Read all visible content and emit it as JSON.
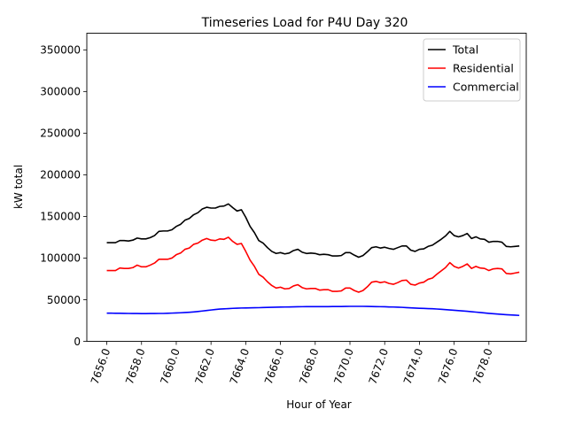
{
  "chart_data": {
    "type": "line",
    "title": "Timeseries Load for P4U   Day 320",
    "xlabel": "Hour of Year",
    "ylabel": "kW total",
    "xlim": [
      7654.85,
      7680.15
    ],
    "ylim": [
      0,
      370000
    ],
    "xticks": [
      7656,
      7658,
      7660,
      7662,
      7664,
      7666,
      7668,
      7670,
      7672,
      7674,
      7676,
      7678
    ],
    "xtick_labels": [
      "7656.0",
      "7658.0",
      "7660.0",
      "7662.0",
      "7664.0",
      "7666.0",
      "7668.0",
      "7670.0",
      "7672.0",
      "7674.0",
      "7676.0",
      "7678.0"
    ],
    "yticks": [
      0,
      50000,
      100000,
      150000,
      200000,
      250000,
      300000,
      350000
    ],
    "ytick_labels": [
      "0",
      "50000",
      "100000",
      "150000",
      "200000",
      "250000",
      "300000",
      "350000"
    ],
    "legend_position": "top-right",
    "x_start": 7656,
    "x_step": 0.25,
    "series": [
      {
        "name": "Total",
        "color": "#000000",
        "values": [
          118500,
          118500,
          118500,
          121000,
          121000,
          120500,
          121500,
          124000,
          123000,
          123000,
          124500,
          127000,
          132000,
          132500,
          132500,
          134000,
          138000,
          140500,
          145500,
          147500,
          152000,
          154500,
          159000,
          161000,
          160000,
          160000,
          162000,
          162500,
          165000,
          160500,
          156500,
          158000,
          149000,
          138000,
          130500,
          121000,
          118000,
          112500,
          108000,
          105500,
          106500,
          105000,
          106000,
          109000,
          110500,
          107000,
          105500,
          106000,
          105500,
          104000,
          104500,
          104000,
          102500,
          102500,
          103000,
          106500,
          106500,
          103500,
          101000,
          103000,
          107500,
          112500,
          113500,
          112000,
          113000,
          111500,
          110500,
          112500,
          114500,
          114500,
          109500,
          108000,
          110500,
          111000,
          114000,
          115500,
          119000,
          122500,
          126500,
          132000,
          127000,
          125500,
          127000,
          129500,
          123500,
          125500,
          123000,
          122500,
          119000,
          120000,
          120000,
          119000,
          114000,
          113500,
          114000,
          114500
        ]
      },
      {
        "name": "Residential",
        "color": "#ff0000",
        "values": [
          85000,
          85000,
          85000,
          88000,
          87500,
          87500,
          88500,
          91500,
          89500,
          89500,
          91500,
          94000,
          98500,
          98500,
          98500,
          100000,
          104000,
          106000,
          110500,
          112000,
          116500,
          118000,
          121500,
          123500,
          121500,
          121000,
          123000,
          122500,
          125000,
          120000,
          116500,
          117500,
          108000,
          97500,
          90000,
          80500,
          77000,
          71500,
          67000,
          64000,
          65000,
          63000,
          63500,
          66500,
          68000,
          64500,
          63000,
          63500,
          63500,
          61500,
          62000,
          62000,
          60000,
          60000,
          60500,
          64000,
          64000,
          61000,
          59000,
          61000,
          65500,
          71000,
          72000,
          70500,
          71500,
          69500,
          68500,
          70500,
          73000,
          73500,
          68500,
          67500,
          70000,
          71000,
          74500,
          76000,
          80500,
          84500,
          88500,
          94500,
          90000,
          88000,
          90000,
          93000,
          87500,
          90000,
          88000,
          87500,
          85000,
          87000,
          87500,
          87000,
          81500,
          81000,
          82000,
          83000
        ]
      },
      {
        "name": "Commercial",
        "color": "#0000ff",
        "values": [
          33800,
          33800,
          33700,
          33700,
          33600,
          33500,
          33400,
          33400,
          33300,
          33300,
          33400,
          33400,
          33500,
          33500,
          33700,
          33900,
          34100,
          34300,
          34600,
          34900,
          35300,
          35800,
          36400,
          37000,
          37600,
          38200,
          38700,
          39000,
          39300,
          39600,
          39800,
          40000,
          40100,
          40200,
          40300,
          40400,
          40600,
          40700,
          40900,
          41000,
          41100,
          41200,
          41300,
          41400,
          41500,
          41600,
          41700,
          41700,
          41700,
          41700,
          41700,
          41700,
          41800,
          41800,
          41800,
          41900,
          42000,
          42000,
          42000,
          42000,
          41900,
          41800,
          41700,
          41600,
          41500,
          41300,
          41200,
          41000,
          40800,
          40500,
          40200,
          39900,
          39700,
          39500,
          39300,
          39100,
          38800,
          38500,
          38100,
          37700,
          37300,
          36900,
          36500,
          36100,
          35600,
          35100,
          34600,
          34100,
          33600,
          33200,
          32800,
          32400,
          32000,
          31700,
          31400,
          31100
        ]
      }
    ]
  }
}
